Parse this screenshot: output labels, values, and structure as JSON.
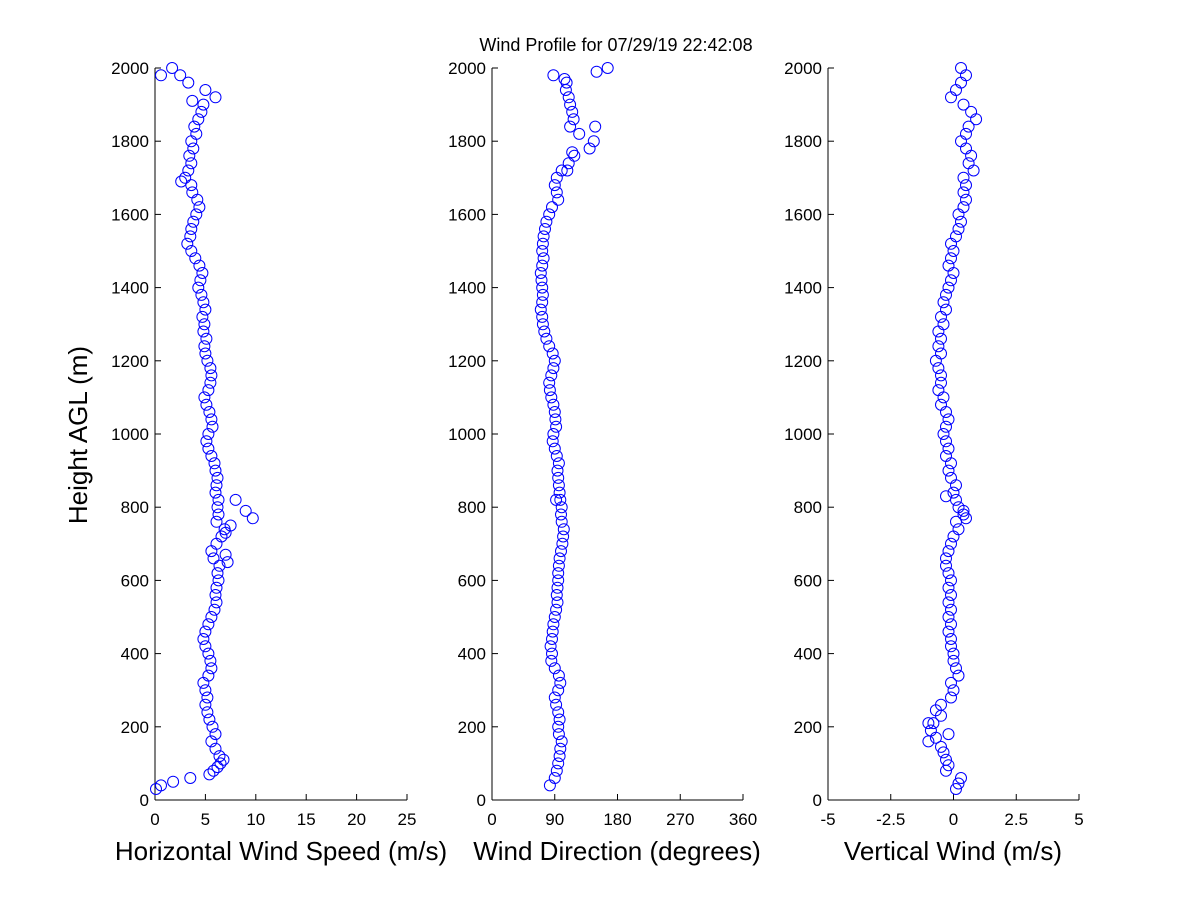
{
  "figure": {
    "title": "Wind Profile for  07/29/19 22:42:08"
  },
  "chart_data": [
    {
      "type": "scatter",
      "title": "Wind Profile for  07/29/19 22:42:08",
      "xlabel": "Horizontal Wind Speed (m/s)",
      "ylabel": "Height AGL (m)",
      "xlim": [
        0,
        25
      ],
      "ylim": [
        0,
        2000
      ],
      "xticks": [
        "0",
        "5",
        "10",
        "15",
        "20",
        "25"
      ],
      "yticks": [
        "0",
        "200",
        "400",
        "600",
        "800",
        "1000",
        "1200",
        "1400",
        "1600",
        "1800",
        "2000"
      ],
      "grid": false,
      "marker": "circle-open",
      "color": "#0000ff",
      "profile": [
        [
          30,
          0.1
        ],
        [
          40,
          0.6
        ],
        [
          50,
          1.8
        ],
        [
          60,
          3.5
        ],
        [
          70,
          5.4
        ],
        [
          80,
          5.8
        ],
        [
          90,
          6.2
        ],
        [
          100,
          6.5
        ],
        [
          110,
          6.8
        ],
        [
          120,
          6.4
        ],
        [
          140,
          6.0
        ],
        [
          160,
          5.6
        ],
        [
          180,
          6.0
        ],
        [
          200,
          5.7
        ],
        [
          220,
          5.4
        ],
        [
          240,
          5.2
        ],
        [
          260,
          5.0
        ],
        [
          280,
          5.2
        ],
        [
          300,
          5.0
        ],
        [
          320,
          4.8
        ],
        [
          340,
          5.3
        ],
        [
          360,
          5.6
        ],
        [
          380,
          5.5
        ],
        [
          400,
          5.3
        ],
        [
          420,
          5.0
        ],
        [
          440,
          4.8
        ],
        [
          460,
          5.0
        ],
        [
          480,
          5.3
        ],
        [
          500,
          5.6
        ],
        [
          520,
          5.9
        ],
        [
          540,
          6.1
        ],
        [
          560,
          6.0
        ],
        [
          580,
          6.1
        ],
        [
          600,
          6.3
        ],
        [
          620,
          6.2
        ],
        [
          640,
          6.4
        ],
        [
          660,
          5.8
        ],
        [
          680,
          5.6
        ],
        [
          700,
          6.1
        ],
        [
          720,
          6.6
        ],
        [
          740,
          6.9
        ],
        [
          760,
          6.1
        ],
        [
          780,
          6.3
        ],
        [
          800,
          6.2
        ],
        [
          820,
          6.3
        ],
        [
          840,
          6.0
        ],
        [
          860,
          6.1
        ],
        [
          880,
          6.2
        ],
        [
          900,
          6.0
        ],
        [
          920,
          5.9
        ],
        [
          940,
          5.6
        ],
        [
          960,
          5.3
        ],
        [
          980,
          5.1
        ],
        [
          1000,
          5.3
        ],
        [
          1020,
          5.7
        ],
        [
          1040,
          5.6
        ],
        [
          1060,
          5.4
        ],
        [
          1080,
          5.1
        ],
        [
          1100,
          4.9
        ],
        [
          1120,
          5.3
        ],
        [
          1140,
          5.5
        ],
        [
          1160,
          5.6
        ],
        [
          1180,
          5.5
        ],
        [
          1200,
          5.2
        ],
        [
          1220,
          5.0
        ],
        [
          1240,
          4.9
        ],
        [
          1260,
          5.1
        ],
        [
          1280,
          4.8
        ],
        [
          1300,
          4.9
        ],
        [
          1320,
          4.7
        ],
        [
          1340,
          5.0
        ],
        [
          1360,
          4.8
        ],
        [
          1380,
          4.6
        ],
        [
          1400,
          4.3
        ],
        [
          1420,
          4.5
        ],
        [
          1440,
          4.7
        ],
        [
          1460,
          4.4
        ],
        [
          1480,
          4.0
        ],
        [
          1500,
          3.6
        ],
        [
          1520,
          3.2
        ],
        [
          1540,
          3.5
        ],
        [
          1560,
          3.6
        ],
        [
          1580,
          3.8
        ],
        [
          1600,
          4.1
        ],
        [
          1620,
          4.4
        ],
        [
          1640,
          4.2
        ],
        [
          1660,
          3.7
        ],
        [
          1680,
          3.6
        ],
        [
          1700,
          3.0
        ],
        [
          1720,
          3.3
        ],
        [
          1740,
          3.6
        ],
        [
          1760,
          3.4
        ],
        [
          1780,
          3.8
        ],
        [
          1800,
          3.6
        ],
        [
          1820,
          4.1
        ],
        [
          1840,
          3.9
        ],
        [
          1860,
          4.3
        ],
        [
          1880,
          4.6
        ],
        [
          1900,
          4.8
        ],
        [
          1920,
          6.0
        ],
        [
          1940,
          5.0
        ],
        [
          1960,
          3.3
        ],
        [
          1980,
          2.5
        ],
        [
          2000,
          1.7
        ]
      ],
      "extra_points": [
        [
          820,
          8.0
        ],
        [
          790,
          9.0
        ],
        [
          770,
          9.7
        ],
        [
          750,
          7.5
        ],
        [
          730,
          7.0
        ],
        [
          650,
          7.2
        ],
        [
          670,
          7.0
        ],
        [
          1910,
          3.7
        ],
        [
          1690,
          2.6
        ],
        [
          1980,
          0.6
        ]
      ]
    },
    {
      "type": "scatter",
      "xlabel": "Wind Direction (degrees)",
      "xlim": [
        0,
        360
      ],
      "ylim": [
        0,
        2000
      ],
      "xticks": [
        "0",
        "90",
        "180",
        "270",
        "360"
      ],
      "yticks": [
        "0",
        "200",
        "400",
        "600",
        "800",
        "1000",
        "1200",
        "1400",
        "1600",
        "1800",
        "2000"
      ],
      "grid": false,
      "marker": "circle-open",
      "color": "#0000ff",
      "profile": [
        [
          40,
          83
        ],
        [
          60,
          90
        ],
        [
          80,
          93
        ],
        [
          100,
          95
        ],
        [
          120,
          97
        ],
        [
          140,
          98
        ],
        [
          160,
          100
        ],
        [
          180,
          96
        ],
        [
          200,
          95
        ],
        [
          220,
          97
        ],
        [
          240,
          95
        ],
        [
          260,
          92
        ],
        [
          280,
          90
        ],
        [
          300,
          95
        ],
        [
          320,
          98
        ],
        [
          340,
          96
        ],
        [
          360,
          90
        ],
        [
          380,
          85
        ],
        [
          400,
          86
        ],
        [
          420,
          84
        ],
        [
          440,
          86
        ],
        [
          460,
          87
        ],
        [
          480,
          88
        ],
        [
          500,
          90
        ],
        [
          520,
          92
        ],
        [
          540,
          94
        ],
        [
          560,
          93
        ],
        [
          580,
          94
        ],
        [
          600,
          95
        ],
        [
          620,
          95
        ],
        [
          640,
          96
        ],
        [
          660,
          97
        ],
        [
          680,
          99
        ],
        [
          700,
          101
        ],
        [
          720,
          102
        ],
        [
          740,
          103
        ],
        [
          760,
          100
        ],
        [
          780,
          99
        ],
        [
          800,
          100
        ],
        [
          820,
          98
        ],
        [
          840,
          97
        ],
        [
          860,
          96
        ],
        [
          880,
          95
        ],
        [
          900,
          94
        ],
        [
          920,
          96
        ],
        [
          940,
          93
        ],
        [
          960,
          90
        ],
        [
          980,
          87
        ],
        [
          1000,
          88
        ],
        [
          1020,
          92
        ],
        [
          1040,
          91
        ],
        [
          1060,
          90
        ],
        [
          1080,
          88
        ],
        [
          1100,
          85
        ],
        [
          1120,
          83
        ],
        [
          1140,
          82
        ],
        [
          1160,
          85
        ],
        [
          1180,
          88
        ],
        [
          1200,
          90
        ],
        [
          1220,
          87
        ],
        [
          1240,
          82
        ],
        [
          1260,
          78
        ],
        [
          1280,
          75
        ],
        [
          1300,
          73
        ],
        [
          1320,
          72
        ],
        [
          1340,
          70
        ],
        [
          1360,
          72
        ],
        [
          1380,
          73
        ],
        [
          1400,
          72
        ],
        [
          1420,
          71
        ],
        [
          1440,
          70
        ],
        [
          1460,
          72
        ],
        [
          1480,
          74
        ],
        [
          1500,
          72
        ],
        [
          1520,
          73
        ],
        [
          1540,
          74
        ],
        [
          1560,
          76
        ],
        [
          1580,
          78
        ],
        [
          1600,
          82
        ],
        [
          1620,
          86
        ],
        [
          1640,
          95
        ],
        [
          1660,
          93
        ],
        [
          1680,
          90
        ],
        [
          1700,
          93
        ],
        [
          1720,
          100
        ],
        [
          1740,
          110
        ],
        [
          1760,
          118
        ],
        [
          1780,
          140
        ],
        [
          1800,
          146
        ],
        [
          1820,
          125
        ],
        [
          1840,
          112
        ],
        [
          1860,
          117
        ],
        [
          1880,
          115
        ],
        [
          1900,
          112
        ],
        [
          1920,
          110
        ],
        [
          1940,
          106
        ],
        [
          1960,
          107
        ],
        [
          1980,
          88
        ],
        [
          1990,
          150
        ],
        [
          2000,
          166
        ]
      ],
      "extra_points": [
        [
          820,
          92
        ],
        [
          1840,
          148
        ],
        [
          1770,
          115
        ],
        [
          1970,
          104
        ],
        [
          1720,
          108
        ]
      ]
    },
    {
      "type": "scatter",
      "xlabel": "Vertical Wind (m/s)",
      "xlim": [
        -5,
        5
      ],
      "ylim": [
        0,
        2000
      ],
      "xticks": [
        "-5",
        "-2.5",
        "0",
        "2.5",
        "5"
      ],
      "yticks": [
        "0",
        "200",
        "400",
        "600",
        "800",
        "1000",
        "1200",
        "1400",
        "1600",
        "1800",
        "2000"
      ],
      "grid": false,
      "marker": "circle-open",
      "color": "#0000ff",
      "profile": [
        [
          30,
          0.1
        ],
        [
          45,
          0.2
        ],
        [
          60,
          0.3
        ],
        [
          80,
          -0.3
        ],
        [
          95,
          -0.2
        ],
        [
          110,
          -0.3
        ],
        [
          130,
          -0.4
        ],
        [
          145,
          -0.5
        ],
        [
          160,
          -1.0
        ],
        [
          170,
          -0.7
        ],
        [
          190,
          -0.9
        ],
        [
          210,
          -0.8
        ],
        [
          230,
          -0.5
        ],
        [
          245,
          -0.7
        ],
        [
          260,
          -0.5
        ],
        [
          280,
          -0.1
        ],
        [
          300,
          0.0
        ],
        [
          320,
          -0.1
        ],
        [
          340,
          0.2
        ],
        [
          360,
          0.1
        ],
        [
          380,
          0.0
        ],
        [
          400,
          0.0
        ],
        [
          420,
          -0.1
        ],
        [
          440,
          -0.1
        ],
        [
          460,
          -0.2
        ],
        [
          480,
          -0.1
        ],
        [
          500,
          -0.2
        ],
        [
          520,
          -0.1
        ],
        [
          540,
          -0.2
        ],
        [
          560,
          -0.1
        ],
        [
          580,
          -0.2
        ],
        [
          600,
          -0.1
        ],
        [
          620,
          -0.2
        ],
        [
          640,
          -0.3
        ],
        [
          660,
          -0.3
        ],
        [
          680,
          -0.2
        ],
        [
          700,
          -0.1
        ],
        [
          720,
          0.0
        ],
        [
          740,
          0.2
        ],
        [
          760,
          0.1
        ],
        [
          780,
          0.4
        ],
        [
          800,
          0.2
        ],
        [
          820,
          0.1
        ],
        [
          840,
          0.0
        ],
        [
          860,
          0.1
        ],
        [
          880,
          -0.1
        ],
        [
          900,
          -0.2
        ],
        [
          920,
          -0.1
        ],
        [
          940,
          -0.3
        ],
        [
          960,
          -0.2
        ],
        [
          980,
          -0.3
        ],
        [
          1000,
          -0.4
        ],
        [
          1020,
          -0.3
        ],
        [
          1040,
          -0.2
        ],
        [
          1060,
          -0.3
        ],
        [
          1080,
          -0.5
        ],
        [
          1100,
          -0.4
        ],
        [
          1120,
          -0.6
        ],
        [
          1140,
          -0.5
        ],
        [
          1160,
          -0.5
        ],
        [
          1180,
          -0.6
        ],
        [
          1200,
          -0.7
        ],
        [
          1220,
          -0.5
        ],
        [
          1240,
          -0.6
        ],
        [
          1260,
          -0.5
        ],
        [
          1280,
          -0.6
        ],
        [
          1300,
          -0.4
        ],
        [
          1320,
          -0.5
        ],
        [
          1340,
          -0.3
        ],
        [
          1360,
          -0.4
        ],
        [
          1380,
          -0.3
        ],
        [
          1400,
          -0.2
        ],
        [
          1420,
          -0.1
        ],
        [
          1440,
          0.0
        ],
        [
          1460,
          -0.2
        ],
        [
          1480,
          -0.1
        ],
        [
          1500,
          0.0
        ],
        [
          1520,
          -0.1
        ],
        [
          1540,
          0.1
        ],
        [
          1560,
          0.2
        ],
        [
          1580,
          0.3
        ],
        [
          1600,
          0.2
        ],
        [
          1620,
          0.4
        ],
        [
          1640,
          0.5
        ],
        [
          1660,
          0.4
        ],
        [
          1680,
          0.5
        ],
        [
          1700,
          0.4
        ],
        [
          1720,
          0.8
        ],
        [
          1740,
          0.6
        ],
        [
          1760,
          0.7
        ],
        [
          1780,
          0.5
        ],
        [
          1800,
          0.3
        ],
        [
          1820,
          0.5
        ],
        [
          1840,
          0.6
        ],
        [
          1860,
          0.9
        ],
        [
          1880,
          0.7
        ],
        [
          1900,
          0.4
        ],
        [
          1920,
          -0.1
        ],
        [
          1940,
          0.1
        ],
        [
          1960,
          0.3
        ],
        [
          1980,
          0.5
        ],
        [
          2000,
          0.3
        ]
      ],
      "extra_points": [
        [
          830,
          -0.3
        ],
        [
          790,
          0.4
        ],
        [
          770,
          0.5
        ],
        [
          180,
          -0.2
        ],
        [
          210,
          -1.0
        ]
      ]
    }
  ]
}
